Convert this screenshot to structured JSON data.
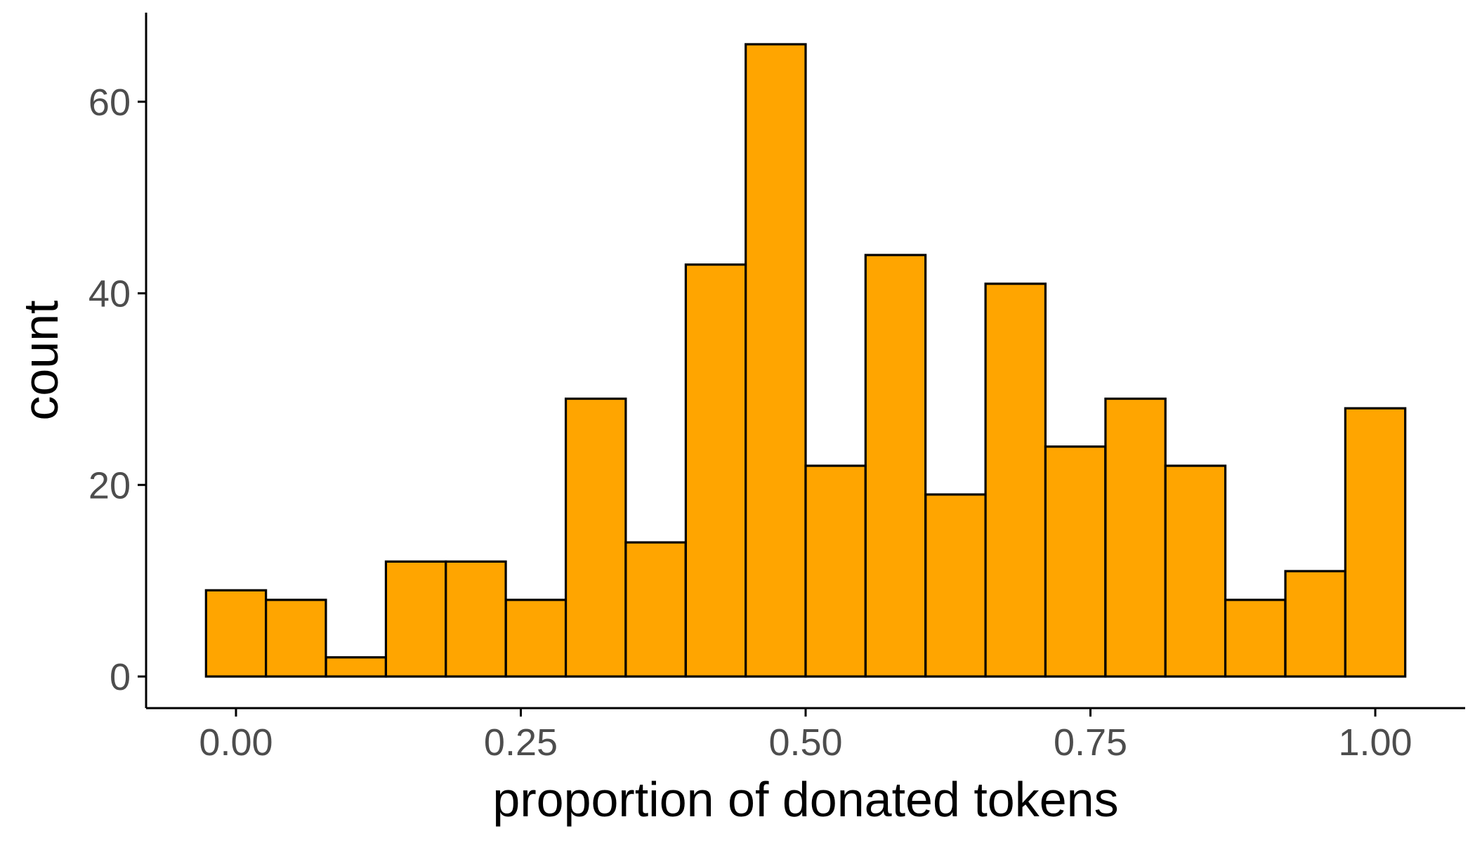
{
  "chart_data": {
    "type": "bar",
    "histogram": true,
    "bin_width": 0.0526,
    "bin_centers": [
      0.0,
      0.0526,
      0.1053,
      0.1579,
      0.2105,
      0.2632,
      0.3158,
      0.3684,
      0.4211,
      0.4737,
      0.5263,
      0.5789,
      0.6316,
      0.6842,
      0.7368,
      0.7895,
      0.8421,
      0.8947,
      0.9474,
      1.0
    ],
    "values": [
      9,
      8,
      2,
      12,
      12,
      8,
      29,
      14,
      43,
      66,
      22,
      44,
      19,
      41,
      24,
      29,
      22,
      8,
      11,
      28
    ],
    "xlabel": "proportion of donated tokens",
    "ylabel": "count",
    "xlim": [
      -0.0789,
      1.0789
    ],
    "ylim": [
      -3.3,
      69.3
    ],
    "x_ticks": [
      0.0,
      0.25,
      0.5,
      0.75,
      1.0
    ],
    "x_tick_labels": [
      "0.00",
      "0.25",
      "0.50",
      "0.75",
      "1.00"
    ],
    "y_ticks": [
      0,
      20,
      40,
      60
    ],
    "y_tick_labels": [
      "0",
      "20",
      "40",
      "60"
    ],
    "grid": false,
    "colors": {
      "bar_fill": "#FFA500",
      "bar_outline": "#000000",
      "tick_label": "#4D4D4D"
    }
  }
}
